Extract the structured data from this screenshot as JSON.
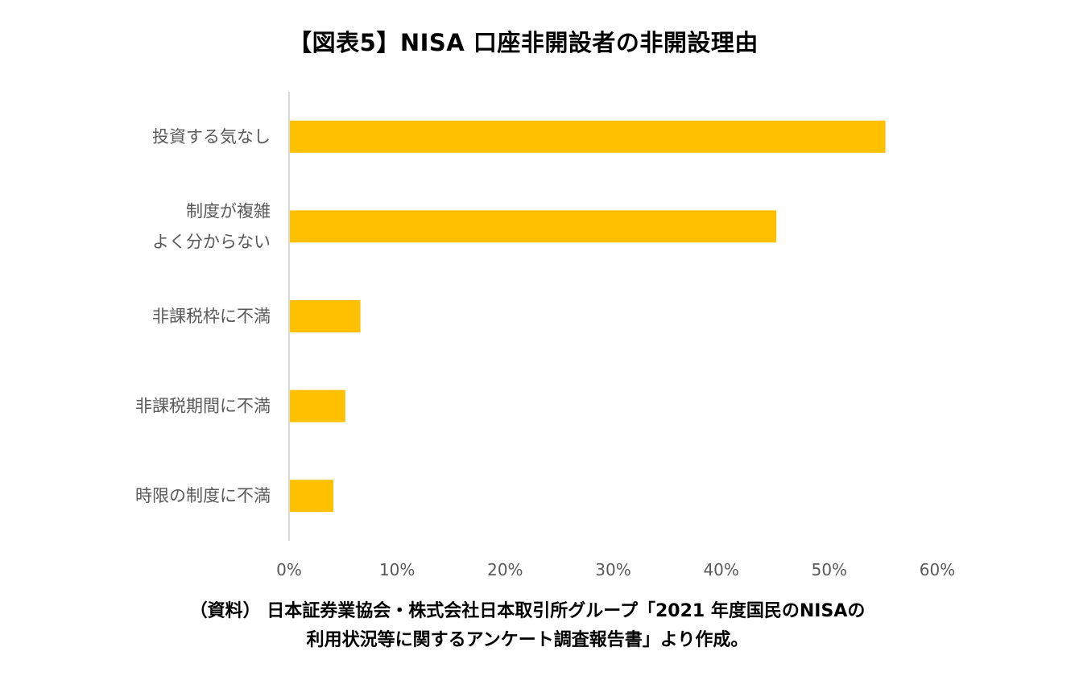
{
  "title": "【図表5】NISA 口座非開設者の非開設理由",
  "source": {
    "line1": "（資料） 日本証券業協会・株式会社日本取引所グループ「2021 年度国民のNISAの",
    "line2": "利用状況等に関するアンケート調査報告書」より作成。"
  },
  "colors": {
    "bar": "#FFC000",
    "axis": "#D9D9D9",
    "label_text": "#595959"
  },
  "chart_data": {
    "type": "bar",
    "orientation": "horizontal",
    "categories": [
      [
        "投資する気なし"
      ],
      [
        "制度が複雑",
        "よく分からない"
      ],
      [
        "非課税枠に不満"
      ],
      [
        "非課税期間に不満"
      ],
      [
        "時限の制度に不満"
      ]
    ],
    "values": [
      55.2,
      45.1,
      6.6,
      5.2,
      4.1
    ],
    "unit": "%",
    "xlim": [
      0,
      60
    ],
    "xticks": [
      "0%",
      "10%",
      "20%",
      "30%",
      "40%",
      "50%",
      "60%"
    ],
    "grid": false,
    "legend": "none"
  }
}
